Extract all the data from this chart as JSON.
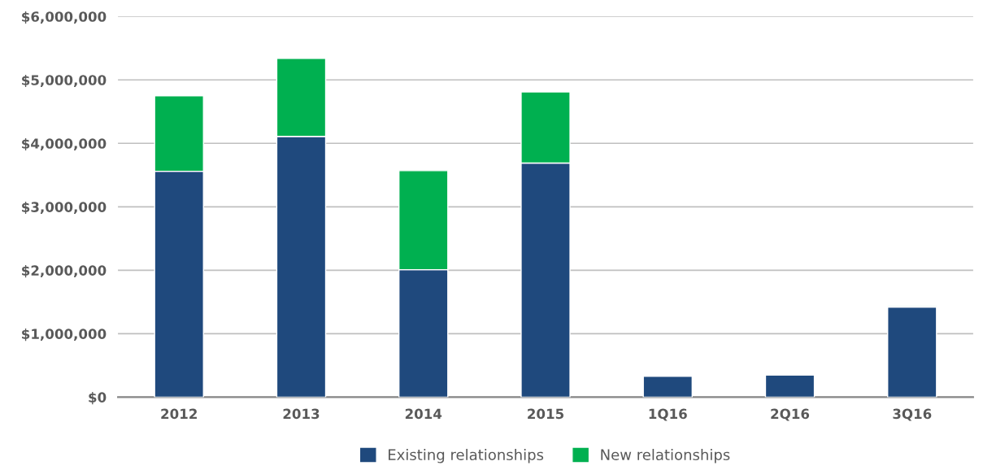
{
  "chart_data": {
    "type": "bar",
    "stacked": true,
    "categories": [
      "2012",
      "2013",
      "2014",
      "2015",
      "1Q16",
      "2Q16",
      "3Q16"
    ],
    "series": [
      {
        "name": "Existing relationships",
        "color": "#1f497d",
        "values": [
          3560000,
          4110000,
          2010000,
          3690000,
          330000,
          350000,
          1420000
        ]
      },
      {
        "name": "New relationships",
        "color": "#00b050",
        "values": [
          1190000,
          1230000,
          1560000,
          1120000,
          10000,
          10000,
          10000
        ]
      }
    ],
    "ylim": [
      0,
      6000000
    ],
    "yticks": [
      {
        "value": 0,
        "label": "$0"
      },
      {
        "value": 1000000,
        "label": "$1,000,000"
      },
      {
        "value": 2000000,
        "label": "$2,000,000"
      },
      {
        "value": 3000000,
        "label": "$3,000,000"
      },
      {
        "value": 4000000,
        "label": "$4,000,000"
      },
      {
        "value": 5000000,
        "label": "$5,000,000"
      },
      {
        "value": 6000000,
        "label": "$6,000,000"
      }
    ],
    "grid": "y",
    "legend": "bottom"
  }
}
